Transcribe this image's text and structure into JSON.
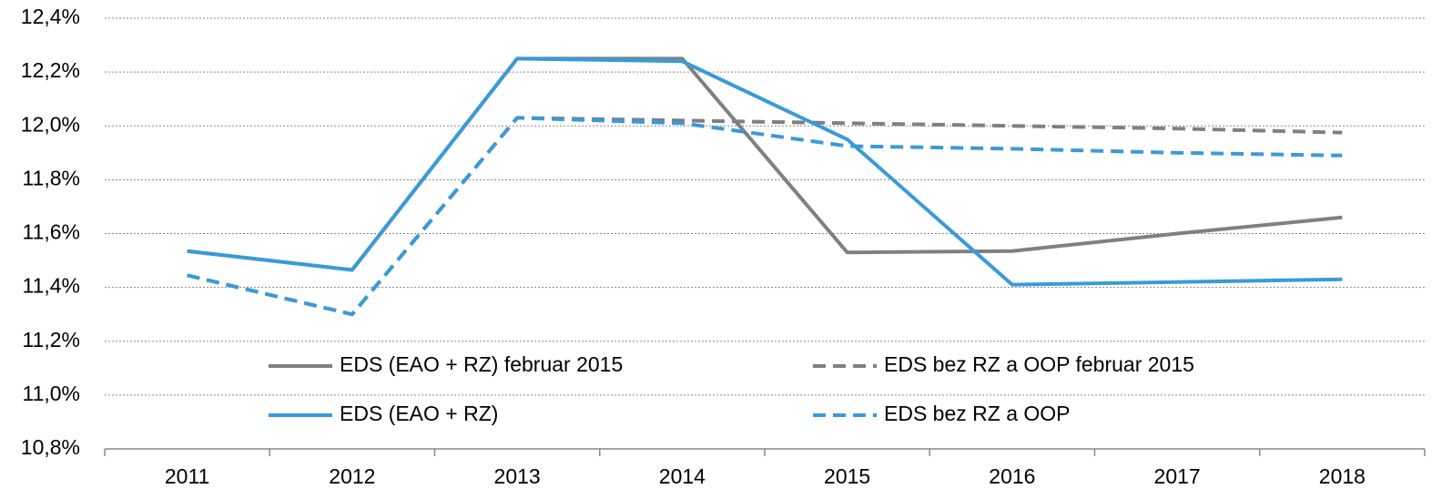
{
  "chart_data": {
    "type": "line",
    "categories": [
      "2011",
      "2012",
      "2013",
      "2014",
      "2015",
      "2016",
      "2017",
      "2018"
    ],
    "series": [
      {
        "name": "EDS (EAO + RZ) februar 2015",
        "color": "#808080",
        "style": "solid",
        "values": [
          11.535,
          11.465,
          12.25,
          12.25,
          11.53,
          11.535,
          11.6,
          11.66
        ]
      },
      {
        "name": "EDS bez RZ a OOP februar 2015",
        "color": "#808080",
        "style": "dashed",
        "values": [
          11.445,
          11.3,
          12.03,
          12.02,
          12.01,
          12.0,
          11.99,
          11.975
        ]
      },
      {
        "name": "EDS (EAO + RZ)",
        "color": "#3a9ad9",
        "style": "solid",
        "values": [
          11.535,
          11.465,
          12.25,
          12.24,
          11.95,
          11.41,
          11.42,
          11.43
        ]
      },
      {
        "name": "EDS bez RZ a OOP",
        "color": "#3a9ad9",
        "style": "dashed",
        "values": [
          11.445,
          11.3,
          12.03,
          12.01,
          11.925,
          11.915,
          11.9,
          11.89
        ]
      }
    ],
    "ylim": [
      10.8,
      12.4
    ],
    "yticks": [
      {
        "value": 10.8,
        "label": "10,8%"
      },
      {
        "value": 11.0,
        "label": "11,0%"
      },
      {
        "value": 11.2,
        "label": "11,2%"
      },
      {
        "value": 11.4,
        "label": "11,4%"
      },
      {
        "value": 11.6,
        "label": "11,6%"
      },
      {
        "value": 11.8,
        "label": "11,8%"
      },
      {
        "value": 12.0,
        "label": "12,0%"
      },
      {
        "value": 12.2,
        "label": "12,2%"
      },
      {
        "value": 12.4,
        "label": "12,4%"
      }
    ],
    "grid": true
  }
}
